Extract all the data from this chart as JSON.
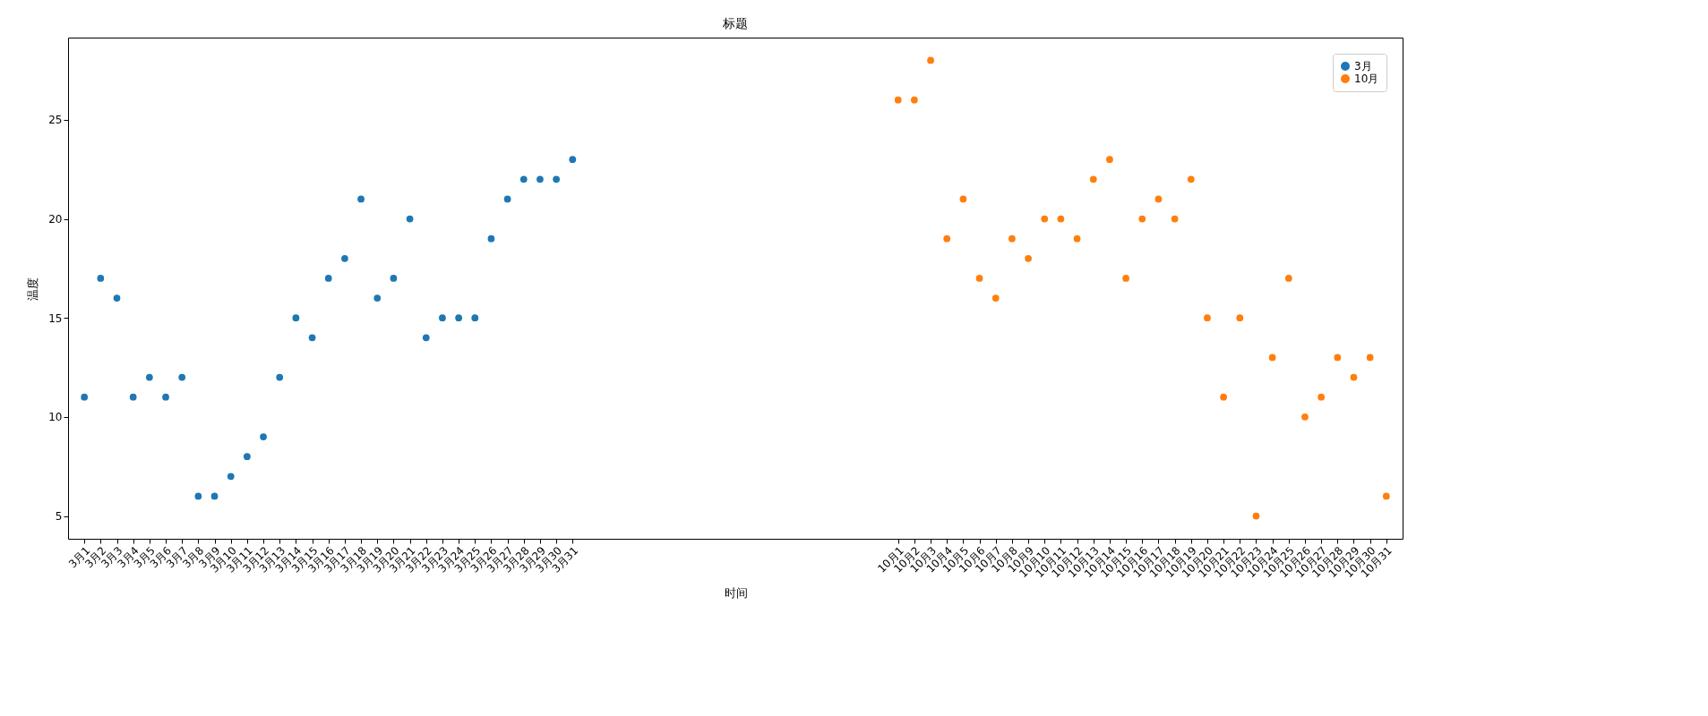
{
  "chart_data": {
    "type": "scatter",
    "title": "标题",
    "xlabel": "时间",
    "ylabel": "温度",
    "ylim": [
      3.85,
      29.15
    ],
    "yticks": [
      5,
      10,
      15,
      20,
      25
    ],
    "categories": [
      "3月1",
      "3月2",
      "3月3",
      "3月4",
      "3月5",
      "3月6",
      "3月7",
      "3月8",
      "3月9",
      "3月10",
      "3月11",
      "3月12",
      "3月13",
      "3月14",
      "3月15",
      "3月16",
      "3月17",
      "3月18",
      "3月19",
      "3月20",
      "3月21",
      "3月22",
      "3月23",
      "3月24",
      "3月25",
      "3月26",
      "3月27",
      "3月28",
      "3月29",
      "3月30",
      "3月31",
      null,
      null,
      null,
      null,
      null,
      null,
      null,
      null,
      null,
      null,
      null,
      null,
      null,
      null,
      null,
      null,
      null,
      null,
      null,
      "10月1",
      "10月2",
      "10月3",
      "10月4",
      "10月5",
      "10月6",
      "10月7",
      "10月8",
      "10月9",
      "10月10",
      "10月11",
      "10月12",
      "10月13",
      "10月14",
      "10月15",
      "10月16",
      "10月17",
      "10月18",
      "10月19",
      "10月20",
      "10月21",
      "10月22",
      "10月23",
      "10月24",
      "10月25",
      "10月26",
      "10月27",
      "10月28",
      "10月29",
      "10月30",
      "10月31"
    ],
    "legend": "top right",
    "marker": "circle",
    "series": [
      {
        "name": "3月",
        "color": "#1f77b4",
        "values": [
          11,
          17,
          16,
          11,
          12,
          11,
          12,
          6,
          6,
          7,
          8,
          9,
          12,
          15,
          14,
          17,
          18,
          21,
          16,
          17,
          20,
          14,
          15,
          15,
          15,
          19,
          21,
          22,
          22,
          22,
          23,
          null,
          null,
          null,
          null,
          null,
          null,
          null,
          null,
          null,
          null,
          null,
          null,
          null,
          null,
          null,
          null,
          null,
          null,
          null,
          null,
          null,
          null,
          null,
          null,
          null,
          null,
          null,
          null,
          null,
          null,
          null,
          null,
          null,
          null,
          null,
          null,
          null,
          null,
          null,
          null,
          null,
          null,
          null,
          null,
          null,
          null,
          null,
          null,
          null,
          null
        ]
      },
      {
        "name": "10月",
        "color": "#ff7f0e",
        "values": [
          null,
          null,
          null,
          null,
          null,
          null,
          null,
          null,
          null,
          null,
          null,
          null,
          null,
          null,
          null,
          null,
          null,
          null,
          null,
          null,
          null,
          null,
          null,
          null,
          null,
          null,
          null,
          null,
          null,
          null,
          null,
          null,
          null,
          null,
          null,
          null,
          null,
          null,
          null,
          null,
          null,
          null,
          null,
          null,
          null,
          null,
          null,
          null,
          null,
          null,
          26,
          26,
          28,
          19,
          21,
          17,
          16,
          19,
          18,
          20,
          20,
          19,
          22,
          23,
          17,
          20,
          21,
          20,
          22,
          15,
          11,
          15,
          5,
          13,
          17,
          10,
          11,
          13,
          12,
          13,
          6
        ]
      }
    ]
  }
}
